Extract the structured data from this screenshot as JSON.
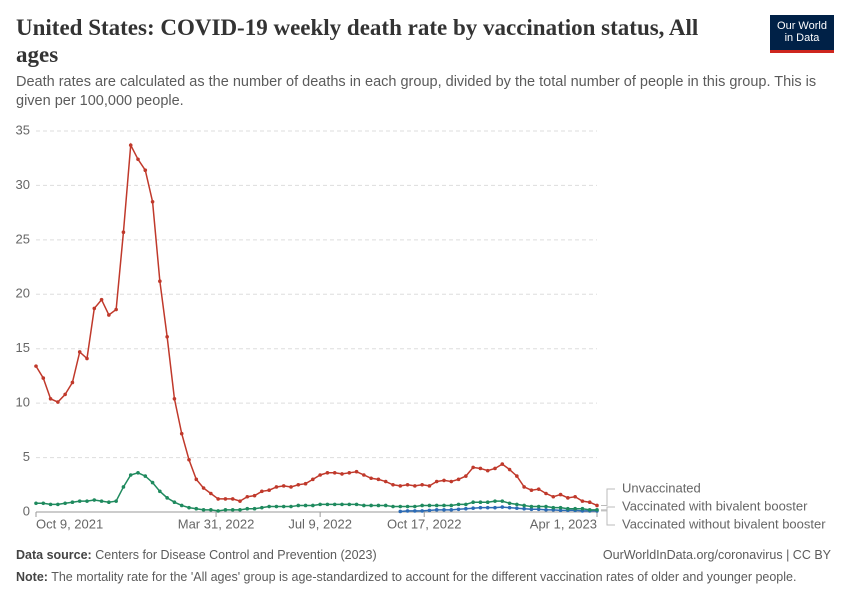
{
  "logo": [
    "Our World",
    "in Data"
  ],
  "chart_data": {
    "type": "line",
    "title": "United States: COVID-19 weekly death rate by vaccination status, All ages",
    "subtitle": "Death rates are calculated as the number of deaths in each group, divided by the total number of people in this group. This is given per 100,000 people.",
    "x": [
      "2021-10-09",
      "2021-10-16",
      "2021-10-23",
      "2021-10-30",
      "2021-11-06",
      "2021-11-13",
      "2021-11-20",
      "2021-11-27",
      "2021-12-04",
      "2021-12-11",
      "2021-12-18",
      "2021-12-25",
      "2022-01-01",
      "2022-01-08",
      "2022-01-15",
      "2022-01-22",
      "2022-01-29",
      "2022-02-05",
      "2022-02-12",
      "2022-02-19",
      "2022-02-26",
      "2022-03-05",
      "2022-03-12",
      "2022-03-19",
      "2022-03-26",
      "2022-04-02",
      "2022-04-09",
      "2022-04-16",
      "2022-04-23",
      "2022-04-30",
      "2022-05-07",
      "2022-05-14",
      "2022-05-21",
      "2022-05-28",
      "2022-06-04",
      "2022-06-11",
      "2022-06-18",
      "2022-06-25",
      "2022-07-02",
      "2022-07-09",
      "2022-07-16",
      "2022-07-23",
      "2022-07-30",
      "2022-08-06",
      "2022-08-13",
      "2022-08-20",
      "2022-08-27",
      "2022-09-03",
      "2022-09-10",
      "2022-09-17",
      "2022-09-24",
      "2022-10-01",
      "2022-10-08",
      "2022-10-15",
      "2022-10-22",
      "2022-10-29",
      "2022-11-05",
      "2022-11-12",
      "2022-11-19",
      "2022-11-26",
      "2022-12-03",
      "2022-12-10",
      "2022-12-17",
      "2022-12-24",
      "2022-12-31",
      "2023-01-07",
      "2023-01-14",
      "2023-01-21",
      "2023-01-28",
      "2023-02-04",
      "2023-02-11",
      "2023-02-18",
      "2023-02-25",
      "2023-03-04",
      "2023-03-11",
      "2023-03-18",
      "2023-03-25",
      "2023-04-01"
    ],
    "xlim": [
      "2021-10-09",
      "2023-04-01"
    ],
    "xticks": [
      {
        "value": "2021-10-09",
        "label": "Oct 9, 2021"
      },
      {
        "value": "2022-03-31",
        "label": "Mar 31, 2022"
      },
      {
        "value": "2022-07-09",
        "label": "Jul 9, 2022"
      },
      {
        "value": "2022-10-17",
        "label": "Oct 17, 2022"
      },
      {
        "value": "2023-04-01",
        "label": "Apr 1, 2023"
      }
    ],
    "ylim": [
      0,
      35
    ],
    "yticks": [
      0,
      5,
      10,
      15,
      20,
      25,
      30,
      35
    ],
    "grid": true,
    "series": [
      {
        "name": "Unvaccinated",
        "color": "#c0392b",
        "values": [
          13.4,
          12.3,
          10.4,
          10.1,
          10.8,
          11.9,
          14.7,
          14.1,
          18.7,
          19.5,
          18.1,
          18.6,
          25.7,
          33.7,
          32.4,
          31.4,
          28.5,
          21.2,
          16.1,
          10.4,
          7.2,
          4.8,
          3.0,
          2.2,
          1.7,
          1.2,
          1.2,
          1.2,
          1.0,
          1.4,
          1.5,
          1.9,
          2.0,
          2.3,
          2.4,
          2.3,
          2.5,
          2.6,
          3.0,
          3.4,
          3.6,
          3.6,
          3.5,
          3.6,
          3.7,
          3.4,
          3.1,
          3.0,
          2.8,
          2.5,
          2.4,
          2.5,
          2.4,
          2.5,
          2.4,
          2.8,
          2.9,
          2.8,
          3.0,
          3.3,
          4.1,
          4.0,
          3.8,
          4.0,
          4.4,
          3.9,
          3.3,
          2.3,
          2.0,
          2.1,
          1.7,
          1.4,
          1.6,
          1.3,
          1.4,
          1.0,
          0.9,
          0.6
        ]
      },
      {
        "name": "Vaccinated with bivalent booster",
        "color": "#2c6bb5",
        "values": [
          null,
          null,
          null,
          null,
          null,
          null,
          null,
          null,
          null,
          null,
          null,
          null,
          null,
          null,
          null,
          null,
          null,
          null,
          null,
          null,
          null,
          null,
          null,
          null,
          null,
          null,
          null,
          null,
          null,
          null,
          null,
          null,
          null,
          null,
          null,
          null,
          null,
          null,
          null,
          null,
          null,
          null,
          null,
          null,
          null,
          null,
          null,
          null,
          null,
          null,
          0.05,
          0.1,
          0.1,
          0.1,
          0.15,
          0.2,
          0.2,
          0.2,
          0.25,
          0.3,
          0.35,
          0.4,
          0.4,
          0.4,
          0.45,
          0.4,
          0.35,
          0.3,
          0.25,
          0.25,
          0.2,
          0.2,
          0.15,
          0.15,
          0.15,
          0.1,
          0.1,
          0.1
        ]
      },
      {
        "name": "Vaccinated without bivalent booster",
        "color": "#1f8a5e",
        "values": [
          0.8,
          0.8,
          0.7,
          0.7,
          0.8,
          0.9,
          1.0,
          1.0,
          1.1,
          1.0,
          0.9,
          1.0,
          2.3,
          3.4,
          3.6,
          3.3,
          2.7,
          1.9,
          1.3,
          0.9,
          0.6,
          0.4,
          0.3,
          0.2,
          0.2,
          0.1,
          0.2,
          0.2,
          0.2,
          0.3,
          0.3,
          0.4,
          0.5,
          0.5,
          0.5,
          0.5,
          0.6,
          0.6,
          0.6,
          0.7,
          0.7,
          0.7,
          0.7,
          0.7,
          0.7,
          0.6,
          0.6,
          0.6,
          0.6,
          0.5,
          0.5,
          0.5,
          0.5,
          0.6,
          0.6,
          0.6,
          0.6,
          0.6,
          0.7,
          0.7,
          0.9,
          0.9,
          0.9,
          1.0,
          1.0,
          0.8,
          0.7,
          0.6,
          0.5,
          0.5,
          0.5,
          0.4,
          0.4,
          0.3,
          0.3,
          0.3,
          0.2,
          0.2
        ]
      }
    ],
    "source_label": "Data source:",
    "source": "Centers for Disease Control and Prevention (2023)",
    "url": "OurWorldInData.org/coronavirus | CC BY",
    "note_label": "Note:",
    "note": "The mortality rate for the 'All ages' group is age-standardized to account for the different vaccination rates of older and younger people."
  }
}
